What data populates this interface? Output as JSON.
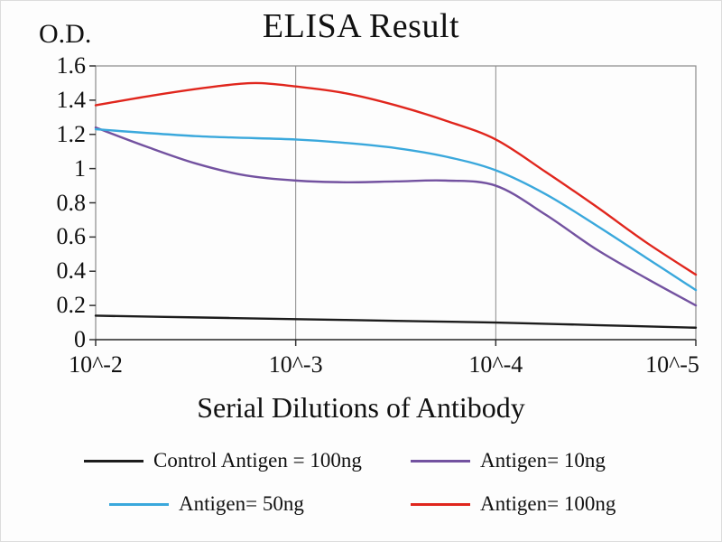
{
  "chart_data": {
    "type": "line",
    "title": "ELISA Result",
    "ylabel": "O.D.",
    "xlabel": "Serial Dilutions of Antibody",
    "x_tick_labels": [
      "10^-2",
      "10^-3",
      "10^-4",
      "10^-5"
    ],
    "y_ticks": [
      0,
      0.2,
      0.4,
      0.6,
      0.8,
      1,
      1.2,
      1.4,
      1.6
    ],
    "y_tick_labels": [
      "0",
      "0.2",
      "0.4",
      "0.6",
      "0.8",
      "1",
      "1.2",
      "1.4",
      "1.6"
    ],
    "xlim": [
      0,
      3
    ],
    "ylim": [
      0,
      1.6
    ],
    "grid": "vertical-major",
    "legend_position": "bottom",
    "frame_color": "#8a8a8a",
    "series": [
      {
        "name": "Control Antigen = 100ng",
        "color": "#1c1c1c",
        "points": [
          [
            0,
            0.14
          ],
          [
            0.5,
            0.13
          ],
          [
            1,
            0.12
          ],
          [
            1.5,
            0.11
          ],
          [
            2,
            0.1
          ],
          [
            2.5,
            0.085
          ],
          [
            3,
            0.07
          ]
        ]
      },
      {
        "name": "Antigen= 10ng",
        "color": "#7352a0",
        "points": [
          [
            0,
            1.24
          ],
          [
            0.25,
            1.13
          ],
          [
            0.5,
            1.03
          ],
          [
            0.75,
            0.96
          ],
          [
            1,
            0.93
          ],
          [
            1.25,
            0.92
          ],
          [
            1.5,
            0.925
          ],
          [
            1.75,
            0.93
          ],
          [
            2,
            0.9
          ],
          [
            2.25,
            0.73
          ],
          [
            2.5,
            0.53
          ],
          [
            2.75,
            0.36
          ],
          [
            3,
            0.2
          ]
        ]
      },
      {
        "name": "Antigen= 50ng",
        "color": "#3aa8dc",
        "points": [
          [
            0,
            1.23
          ],
          [
            0.5,
            1.19
          ],
          [
            1,
            1.17
          ],
          [
            1.25,
            1.15
          ],
          [
            1.5,
            1.12
          ],
          [
            1.75,
            1.07
          ],
          [
            2,
            0.99
          ],
          [
            2.25,
            0.85
          ],
          [
            2.5,
            0.67
          ],
          [
            2.75,
            0.48
          ],
          [
            3,
            0.29
          ]
        ]
      },
      {
        "name": "Antigen= 100ng",
        "color": "#e0261d",
        "points": [
          [
            0,
            1.37
          ],
          [
            0.3,
            1.43
          ],
          [
            0.6,
            1.48
          ],
          [
            0.8,
            1.5
          ],
          [
            1,
            1.48
          ],
          [
            1.25,
            1.44
          ],
          [
            1.5,
            1.37
          ],
          [
            1.75,
            1.28
          ],
          [
            2,
            1.17
          ],
          [
            2.25,
            0.98
          ],
          [
            2.5,
            0.78
          ],
          [
            2.75,
            0.57
          ],
          [
            3,
            0.38
          ]
        ]
      }
    ]
  }
}
